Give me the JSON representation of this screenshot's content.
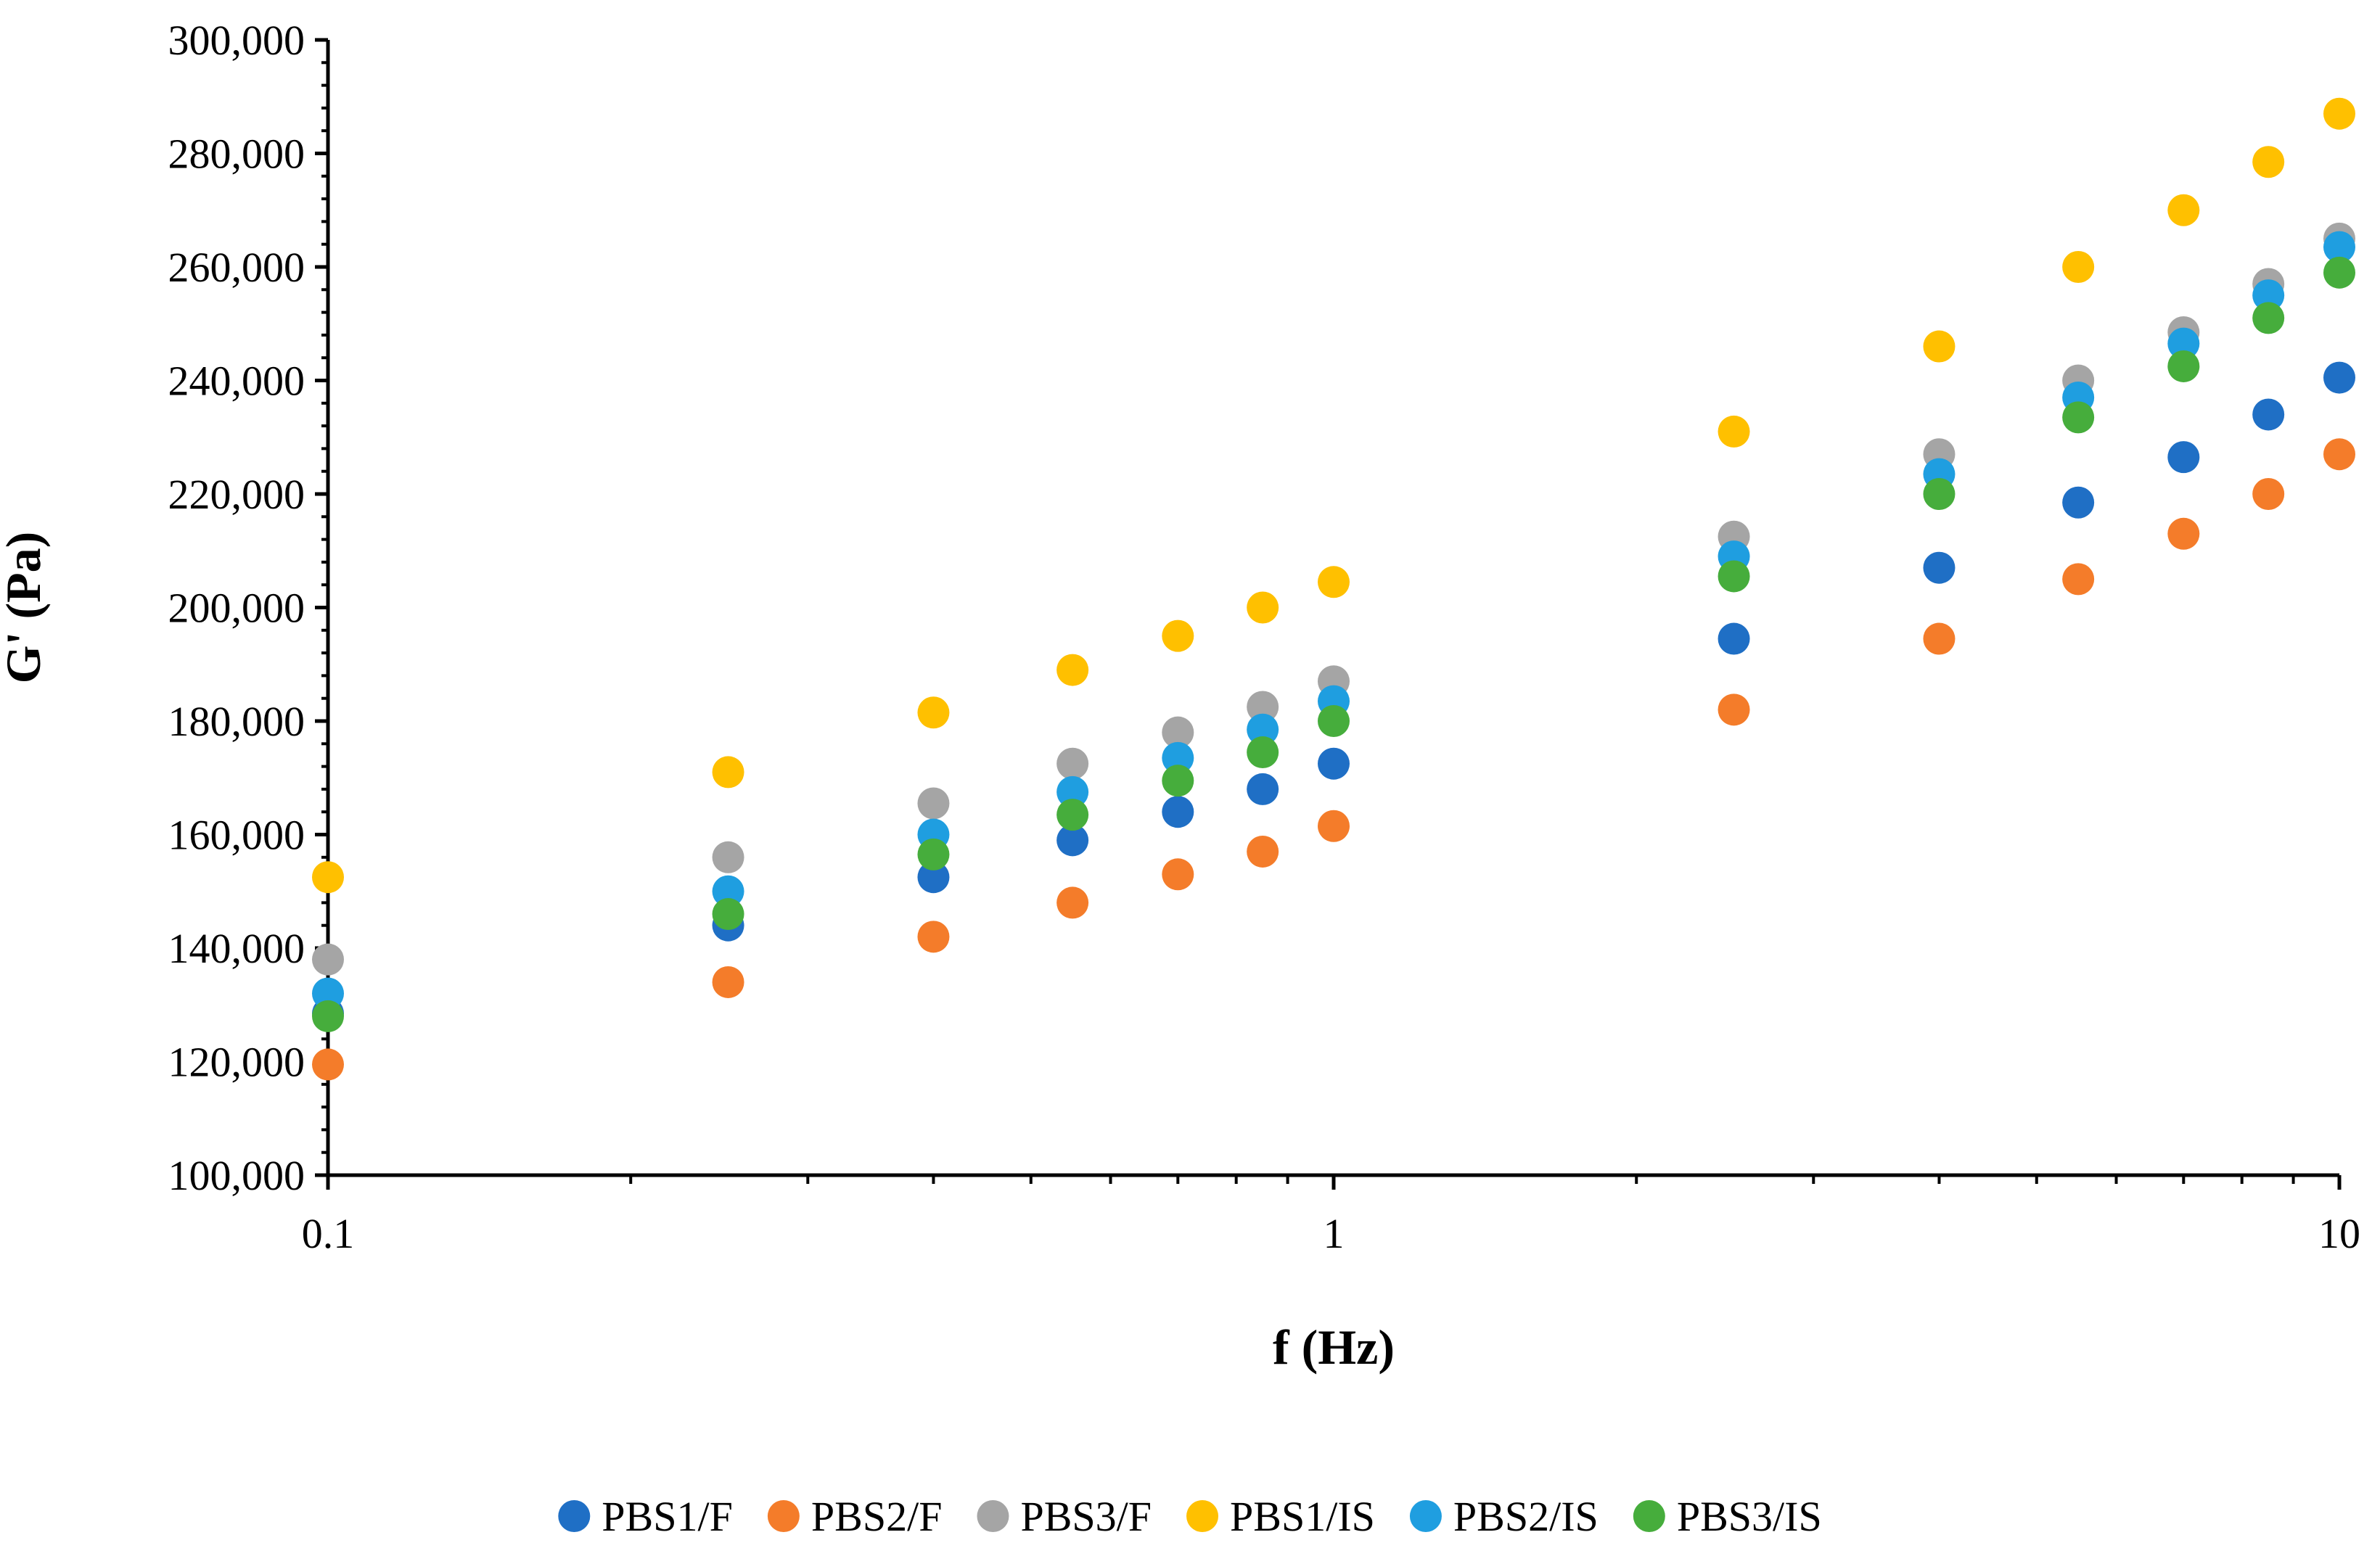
{
  "chart_data": {
    "type": "scatter",
    "title": "",
    "xlabel": "f (Hz)",
    "ylabel": "G' (Pa)",
    "xscale": "log",
    "xlim": [
      0.1,
      10
    ],
    "ylim": [
      100000,
      300000
    ],
    "x_ticks": [
      0.1,
      1,
      10
    ],
    "x_tick_labels": [
      "0.1",
      "1",
      "10"
    ],
    "y_ticks": [
      100000,
      120000,
      140000,
      160000,
      180000,
      200000,
      220000,
      240000,
      260000,
      280000,
      300000
    ],
    "y_tick_labels": [
      "100,000",
      "120,000",
      "140,000",
      "160,000",
      "180,000",
      "200,000",
      "220,000",
      "240,000",
      "260,000",
      "280,000",
      "300,000"
    ],
    "grid": false,
    "legend_position": "bottom",
    "x": [
      0.1,
      0.25,
      0.4,
      0.55,
      0.7,
      0.85,
      1,
      2.5,
      4,
      5.5,
      7,
      8.5,
      10
    ],
    "series": [
      {
        "name": "PBS1/F",
        "color": "#1f6fc5",
        "values": [
          128500,
          144000,
          152500,
          159000,
          164000,
          168000,
          172500,
          194500,
          207000,
          218500,
          226500,
          234000,
          240500
        ]
      },
      {
        "name": "PBS2/F",
        "color": "#f47c2a",
        "values": [
          119500,
          134000,
          142000,
          148000,
          153000,
          157000,
          161500,
          182000,
          194500,
          205000,
          213000,
          220000,
          227000
        ]
      },
      {
        "name": "PBS3/F",
        "color": "#a5a5a5",
        "values": [
          138000,
          156000,
          165500,
          172500,
          178000,
          182500,
          187000,
          212500,
          227000,
          240000,
          248500,
          257000,
          265000
        ]
      },
      {
        "name": "PBS1/IS",
        "color": "#ffc000",
        "values": [
          152500,
          171000,
          181500,
          189000,
          195000,
          200000,
          204500,
          231000,
          246000,
          260000,
          270000,
          278500,
          287000
        ]
      },
      {
        "name": "PBS2/IS",
        "color": "#1f9ee0",
        "values": [
          132000,
          150000,
          160000,
          167500,
          173500,
          178500,
          183500,
          209000,
          223500,
          237000,
          246500,
          255000,
          263500
        ]
      },
      {
        "name": "PBS3/IS",
        "color": "#46ad3c",
        "values": [
          128000,
          146000,
          156500,
          163500,
          169500,
          174500,
          180000,
          205500,
          220000,
          233500,
          242500,
          251000,
          259000
        ]
      }
    ]
  }
}
